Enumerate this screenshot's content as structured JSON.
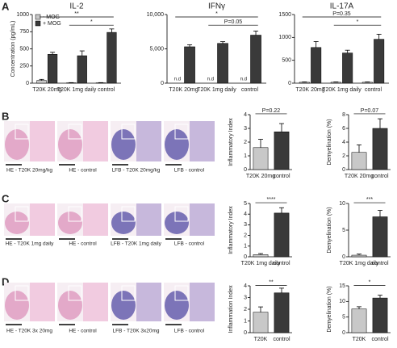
{
  "panel_labels": [
    "A",
    "B",
    "C",
    "D"
  ],
  "image_captions": [
    [
      "HE - T20K 20mg/kg",
      "HE - control",
      "LFB - T20K 20mg/kg",
      "LFB - control"
    ],
    [
      "HE - T20K 1mg daily",
      "HE - control",
      "LFB - T20K 1mg daily",
      "LFB - control"
    ],
    [
      "HE - T20K 3x 20mg",
      "HE - control",
      "LFB - T20K 3x20mg",
      "LFB - control"
    ]
  ],
  "chart_data": [
    {
      "type": "bar",
      "title": "IL-2",
      "ylabel": "Concentration (pg/mL)",
      "categories": [
        "T20K 20mg",
        "T20K 1mg daily",
        "control"
      ],
      "series": [
        {
          "name": "- MOG",
          "color": "#c8c8c8",
          "values": [
            40,
            5,
            5
          ],
          "errors": [
            15,
            3,
            3
          ]
        },
        {
          "name": "+ MOG",
          "color": "#3a3a3a",
          "values": [
            420,
            400,
            740
          ],
          "errors": [
            30,
            70,
            50
          ]
        }
      ],
      "ylim": [
        0,
        1000
      ],
      "yticks": [
        0,
        250,
        500,
        750,
        1000
      ],
      "annotations": [
        "**",
        "*"
      ]
    },
    {
      "type": "bar",
      "title": "IFNγ",
      "categories": [
        "T20K 20mg",
        "T20K 1mg daily",
        "control"
      ],
      "series": [
        {
          "color": "#c8c8c8",
          "values": [
            null,
            null,
            null
          ],
          "value_labels": [
            "n.d",
            "n.d",
            "n.d"
          ]
        },
        {
          "color": "#3a3a3a",
          "values": [
            5300,
            5800,
            7000
          ],
          "errors": [
            300,
            250,
            600
          ]
        }
      ],
      "ylim": [
        0,
        10000
      ],
      "yticks": [
        0,
        {
          "value": 5000,
          "label": "5,000"
        },
        {
          "value": 10000,
          "label": "10,000"
        }
      ],
      "annotations": [
        "*",
        "P=0.05"
      ]
    },
    {
      "type": "bar",
      "title": "IL-17A",
      "categories": [
        "T20K 20mg",
        "T20K 1mg daily",
        "control"
      ],
      "series": [
        {
          "color": "#c8c8c8",
          "values": [
            20,
            20,
            20
          ],
          "errors": [
            8,
            8,
            8
          ]
        },
        {
          "color": "#3a3a3a",
          "values": [
            780,
            660,
            960
          ],
          "errors": [
            130,
            60,
            110
          ]
        }
      ],
      "ylim": [
        0,
        1500
      ],
      "yticks": [
        0,
        500,
        1000,
        1500
      ],
      "annotations": [
        "P=0.35",
        "*"
      ]
    },
    {
      "type": "bar",
      "ylabel": "Inflammatory Index",
      "categories": [
        "T20K 20mg",
        "control"
      ],
      "values": [
        1.6,
        2.75
      ],
      "errors": [
        0.6,
        0.6
      ],
      "colors": [
        "#c8c8c8",
        "#3a3a3a"
      ],
      "ylim": [
        0,
        4
      ],
      "yticks": [
        0,
        1,
        2,
        3,
        4
      ],
      "annotations": [
        "P=0.22"
      ]
    },
    {
      "type": "bar",
      "ylabel": "Demyelination (%)",
      "categories": [
        "T20K 20mg",
        "control"
      ],
      "values": [
        2.5,
        6
      ],
      "errors": [
        1.1,
        1.4
      ],
      "colors": [
        "#c8c8c8",
        "#3a3a3a"
      ],
      "ylim": [
        0,
        8
      ],
      "yticks": [
        0,
        2,
        4,
        6,
        8
      ],
      "annotations": [
        "P=0.07"
      ]
    },
    {
      "type": "bar",
      "ylabel": "Inflammatory Index",
      "categories": [
        "T20K 1mg daily",
        "control"
      ],
      "values": [
        0.2,
        4.1
      ],
      "errors": [
        0.1,
        0.5
      ],
      "colors": [
        "#c8c8c8",
        "#3a3a3a"
      ],
      "ylim": [
        0,
        5
      ],
      "yticks": [
        0,
        1,
        2,
        3,
        4,
        5
      ],
      "annotations": [
        "****"
      ]
    },
    {
      "type": "bar",
      "ylabel": "Demyelination (%)",
      "categories": [
        "T20K 1mg daily",
        "control"
      ],
      "values": [
        0.3,
        7.5
      ],
      "errors": [
        0.2,
        1.2
      ],
      "colors": [
        "#c8c8c8",
        "#3a3a3a"
      ],
      "ylim": [
        0,
        10
      ],
      "yticks": [
        0,
        5,
        10
      ],
      "annotations": [
        "***"
      ]
    },
    {
      "type": "bar",
      "ylabel": "Inflammation Index",
      "categories": [
        "T20K",
        "control"
      ],
      "values": [
        1.75,
        3.4
      ],
      "errors": [
        0.45,
        0.4
      ],
      "colors": [
        "#c8c8c8",
        "#3a3a3a"
      ],
      "ylim": [
        0,
        4
      ],
      "yticks": [
        0,
        1,
        2,
        3,
        4
      ],
      "annotations": [
        "**"
      ]
    },
    {
      "type": "bar",
      "ylabel": "Demyelination (%)",
      "categories": [
        "T20K",
        "control"
      ],
      "values": [
        7.6,
        11.1
      ],
      "errors": [
        0.7,
        0.9
      ],
      "colors": [
        "#c8c8c8",
        "#3a3a3a"
      ],
      "ylim": [
        0,
        15
      ],
      "yticks": [
        0,
        5,
        10,
        15
      ],
      "annotations": [
        "*"
      ]
    }
  ]
}
